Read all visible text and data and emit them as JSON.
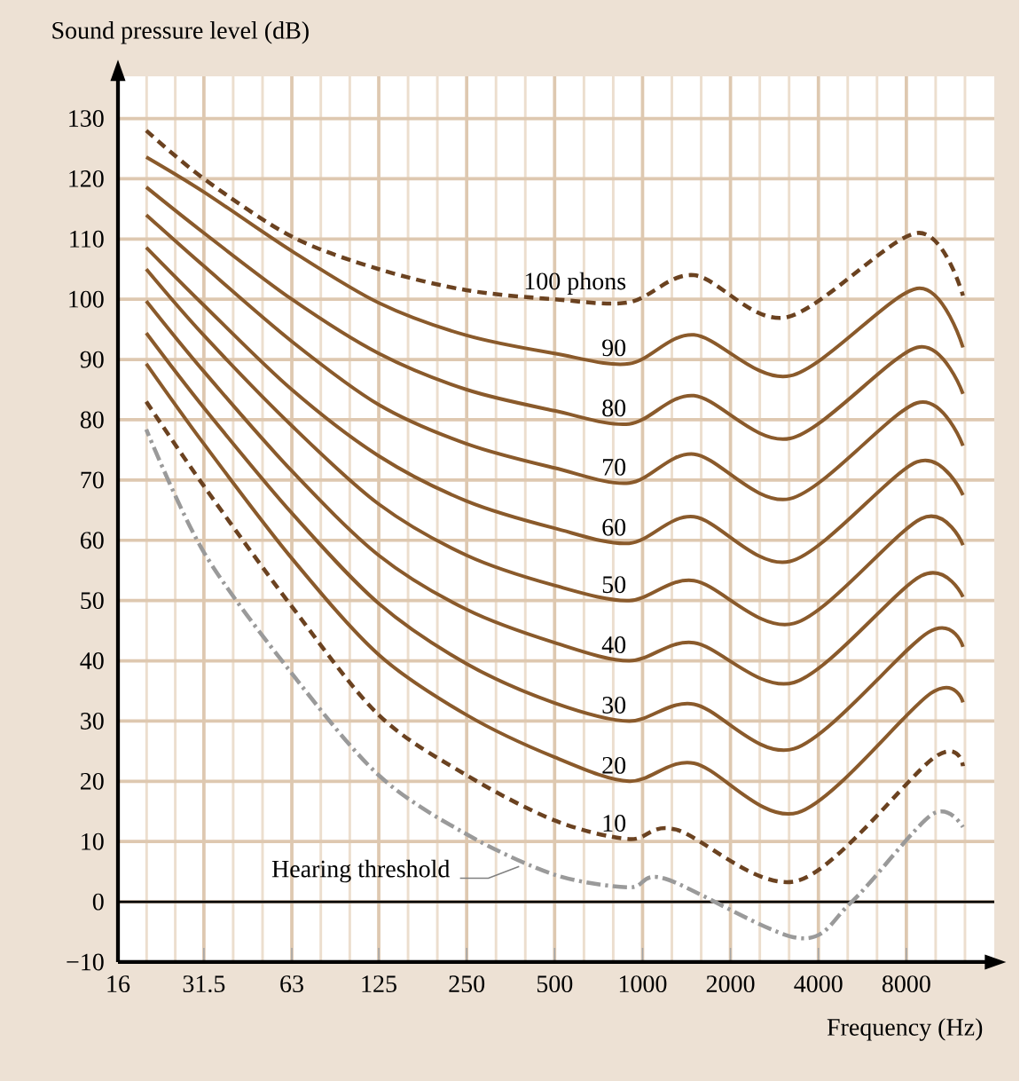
{
  "chart_data": {
    "type": "line",
    "xlabel": "Frequency (Hz)",
    "ylabel": "Sound pressure level (dB)",
    "log": "x",
    "xlim": [
      16,
      16000
    ],
    "ylim": [
      -10,
      137
    ],
    "xticks": [
      16,
      31.5,
      63,
      125,
      250,
      500,
      1000,
      2000,
      4000,
      8000
    ],
    "yticks": [
      {
        "value": -10,
        "label": "−10"
      },
      0,
      10,
      20,
      30,
      40,
      50,
      60,
      70,
      80,
      90,
      100,
      110,
      120,
      130
    ],
    "grid": true,
    "ref_lines": [
      {
        "axis": "y",
        "value": 0,
        "color": "#000000"
      }
    ],
    "series": [
      {
        "name": "100 phons",
        "color": "#6b4220",
        "line_style": "dashed",
        "x": [
          20,
          31.5,
          63,
          125,
          250,
          500,
          900,
          1500,
          3100,
          8700,
          12500
        ],
        "values": [
          128,
          120,
          110.4,
          105,
          101.5,
          100,
          99.5,
          104,
          97,
          111,
          100.6
        ]
      },
      {
        "name": "90",
        "color": "#8a5a2b",
        "line_style": "solid",
        "x": [
          20,
          31.5,
          63,
          125,
          250,
          500,
          900,
          1500,
          3200,
          8700,
          12500
        ],
        "values": [
          123.6,
          117.8,
          108,
          99.4,
          94,
          91,
          89.3,
          94.1,
          87.3,
          101.8,
          92
        ]
      },
      {
        "name": "80",
        "color": "#8a5a2b",
        "line_style": "solid",
        "x": [
          20,
          31.5,
          63,
          125,
          250,
          500,
          900,
          1500,
          3200,
          8700,
          12500
        ],
        "values": [
          118.6,
          111,
          100,
          91,
          85,
          81.5,
          79.3,
          84,
          76.9,
          92,
          84.3
        ]
      },
      {
        "name": "70",
        "color": "#8a5a2b",
        "line_style": "solid",
        "x": [
          20,
          31.5,
          63,
          125,
          250,
          500,
          900,
          1500,
          3200,
          8700,
          12500
        ],
        "values": [
          114,
          105.5,
          93,
          82.5,
          76,
          72,
          69.5,
          74.3,
          66.9,
          82.8,
          75.7
        ]
      },
      {
        "name": "60",
        "color": "#8a5a2b",
        "line_style": "solid",
        "x": [
          20,
          31.5,
          63,
          125,
          250,
          500,
          900,
          1500,
          3200,
          8700,
          12500
        ],
        "values": [
          108.6,
          99,
          85,
          74,
          66.5,
          62,
          59.5,
          63.9,
          56.5,
          73,
          67.5
        ]
      },
      {
        "name": "50",
        "color": "#8a5a2b",
        "line_style": "solid",
        "x": [
          20,
          31.5,
          63,
          125,
          250,
          500,
          900,
          1500,
          3300,
          9000,
          12500
        ],
        "values": [
          105,
          94,
          79,
          66,
          57.5,
          52.5,
          50,
          53.3,
          46.2,
          63.6,
          59.2
        ]
      },
      {
        "name": "40",
        "color": "#8a5a2b",
        "line_style": "solid",
        "x": [
          20,
          31.5,
          63,
          125,
          250,
          500,
          900,
          1500,
          3300,
          9000,
          12500
        ],
        "values": [
          99.7,
          88,
          71.5,
          57.5,
          48.5,
          43,
          40,
          43,
          36.4,
          54.1,
          50.6
        ]
      },
      {
        "name": "30",
        "color": "#8a5a2b",
        "line_style": "solid",
        "x": [
          20,
          31.5,
          63,
          125,
          250,
          500,
          900,
          1500,
          3300,
          9500,
          12500
        ],
        "values": [
          94.4,
          82,
          64.5,
          49.5,
          39.5,
          33,
          30,
          32.8,
          25.4,
          44.7,
          42.3
        ]
      },
      {
        "name": "20",
        "color": "#8a5a2b",
        "line_style": "solid",
        "x": [
          20,
          31.5,
          63,
          125,
          250,
          500,
          900,
          1500,
          3400,
          9700,
          12500
        ],
        "values": [
          89.3,
          76,
          57,
          41,
          31,
          24,
          20,
          23,
          14.8,
          34.6,
          33.1
        ]
      },
      {
        "name": "10",
        "color": "#6b4220",
        "line_style": "dashed",
        "x": [
          20,
          31.5,
          63,
          125,
          250,
          500,
          900,
          1300,
          3400,
          10000,
          12500
        ],
        "values": [
          83,
          69,
          49,
          31,
          21,
          13.5,
          10.4,
          12,
          3.5,
          24,
          22.5
        ]
      },
      {
        "name": "Hearing threshold",
        "color": "#9a9a9a",
        "line_style": "dashdot",
        "x": [
          20,
          31.5,
          63,
          125,
          250,
          500,
          900,
          1200,
          3400,
          5200,
          9800,
          12500
        ],
        "values": [
          78.4,
          58,
          37.9,
          21,
          11.2,
          4.5,
          2.4,
          3.8,
          -6,
          0,
          14.5,
          12.4
        ]
      }
    ]
  }
}
